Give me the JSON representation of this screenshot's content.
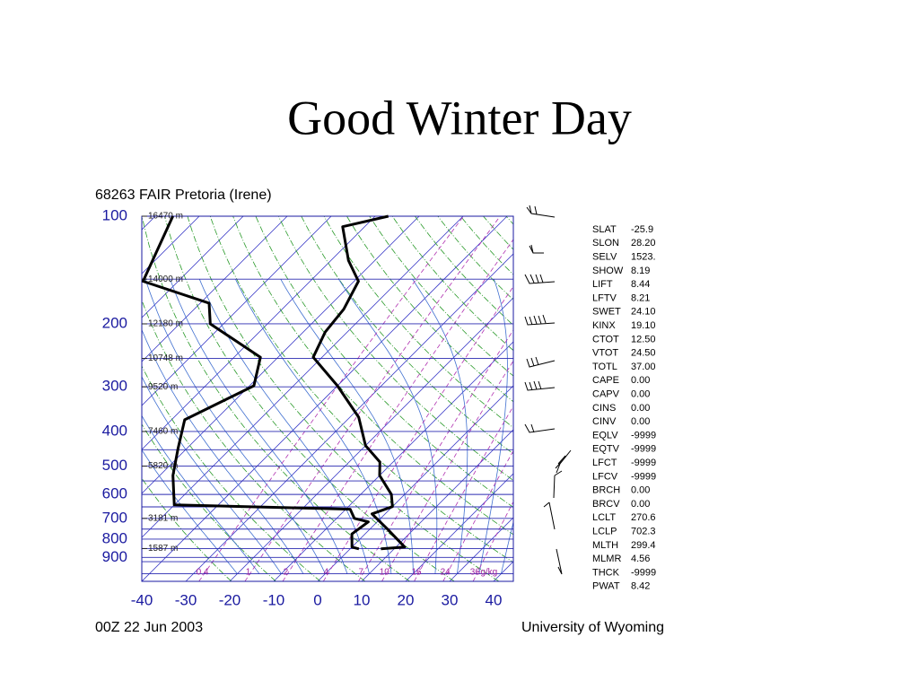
{
  "slide": {
    "title": "Good Winter Day"
  },
  "chart_data": {
    "type": "skew-t",
    "title": "68263 FAIR Pretoria (Irene)",
    "date": "00Z 22 Jun 2003",
    "source": "University of Wyoming",
    "xlim": [
      -40,
      44.5
    ],
    "xticks": [
      -40,
      -30,
      -20,
      -10,
      0,
      10,
      20,
      30,
      40
    ],
    "ylim": [
      1050,
      100
    ],
    "log_y": true,
    "yticks": [
      100,
      200,
      300,
      400,
      500,
      600,
      700,
      800,
      900
    ],
    "ygrid": [
      100,
      150,
      200,
      250,
      300,
      400,
      450,
      500,
      550,
      600,
      650,
      700,
      750,
      800,
      850,
      900,
      925,
      1000
    ],
    "heights": [
      {
        "pressure": 100,
        "label": "16470 m"
      },
      {
        "pressure": 150,
        "label": "14000 m"
      },
      {
        "pressure": 200,
        "label": "12180 m"
      },
      {
        "pressure": 250,
        "label": "10748 m"
      },
      {
        "pressure": 300,
        "label": "9520 m"
      },
      {
        "pressure": 400,
        "label": "7460 m"
      },
      {
        "pressure": 500,
        "label": "5820 m"
      },
      {
        "pressure": 700,
        "label": "3181 m"
      },
      {
        "pressure": 850,
        "label": "1587 m"
      }
    ],
    "mixing_ratio_labels": [
      "0.4",
      "1",
      "2",
      "4",
      "7",
      "10",
      "16",
      "24",
      "36"
    ],
    "mixing_ratio_unit": "g/kg",
    "series": [
      {
        "color": "#000000",
        "pressure": [
          100,
          107,
          133,
          152,
          182,
          211,
          248,
          298,
          365,
          438,
          487,
          531,
          600,
          649,
          680,
          750,
          842,
          852
        ],
        "values": [
          -67,
          -75,
          -66,
          -59,
          -56,
          -55,
          -52,
          -40,
          -28,
          -20,
          -13,
          -10,
          -3,
          0,
          -3,
          4,
          12,
          7
        ]
      },
      {
        "color": "#000000",
        "pressure": [
          100,
          152,
          175,
          200,
          248,
          298,
          371,
          446,
          531,
          642,
          660,
          700,
          716,
          774,
          842,
          852
        ],
        "values": [
          -116,
          -108,
          -88,
          -83,
          -64,
          -59,
          -67,
          -62,
          -57,
          -50,
          -9,
          -6,
          -2,
          -3,
          0,
          2
        ]
      }
    ]
  },
  "indices": {
    "rows": [
      [
        "SLAT",
        "-25.9"
      ],
      [
        "SLON",
        "28.20"
      ],
      [
        "SELV",
        "1523."
      ],
      [
        "SHOW",
        "8.19"
      ],
      [
        "LIFT",
        "8.44"
      ],
      [
        "LFTV",
        "8.21"
      ],
      [
        "SWET",
        "24.10"
      ],
      [
        "KINX",
        "19.10"
      ],
      [
        "CTOT",
        "12.50"
      ],
      [
        "VTOT",
        "24.50"
      ],
      [
        "TOTL",
        "37.00"
      ],
      [
        "CAPE",
        "0.00"
      ],
      [
        "CAPV",
        "0.00"
      ],
      [
        "CINS",
        "0.00"
      ],
      [
        "CINV",
        "0.00"
      ],
      [
        "EQLV",
        "-9999"
      ],
      [
        "EQTV",
        "-9999"
      ],
      [
        "LFCT",
        "-9999"
      ],
      [
        "LFCV",
        "-9999"
      ],
      [
        "BRCH",
        "0.00"
      ],
      [
        "BRCV",
        "0.00"
      ],
      [
        "LCLT",
        "270.6"
      ],
      [
        "LCLP",
        "702.3"
      ],
      [
        "MLTH",
        "299.4"
      ],
      [
        "MLMR",
        "4.56"
      ],
      [
        "THCK",
        "-9999"
      ],
      [
        "PWAT",
        "8.42"
      ]
    ]
  }
}
